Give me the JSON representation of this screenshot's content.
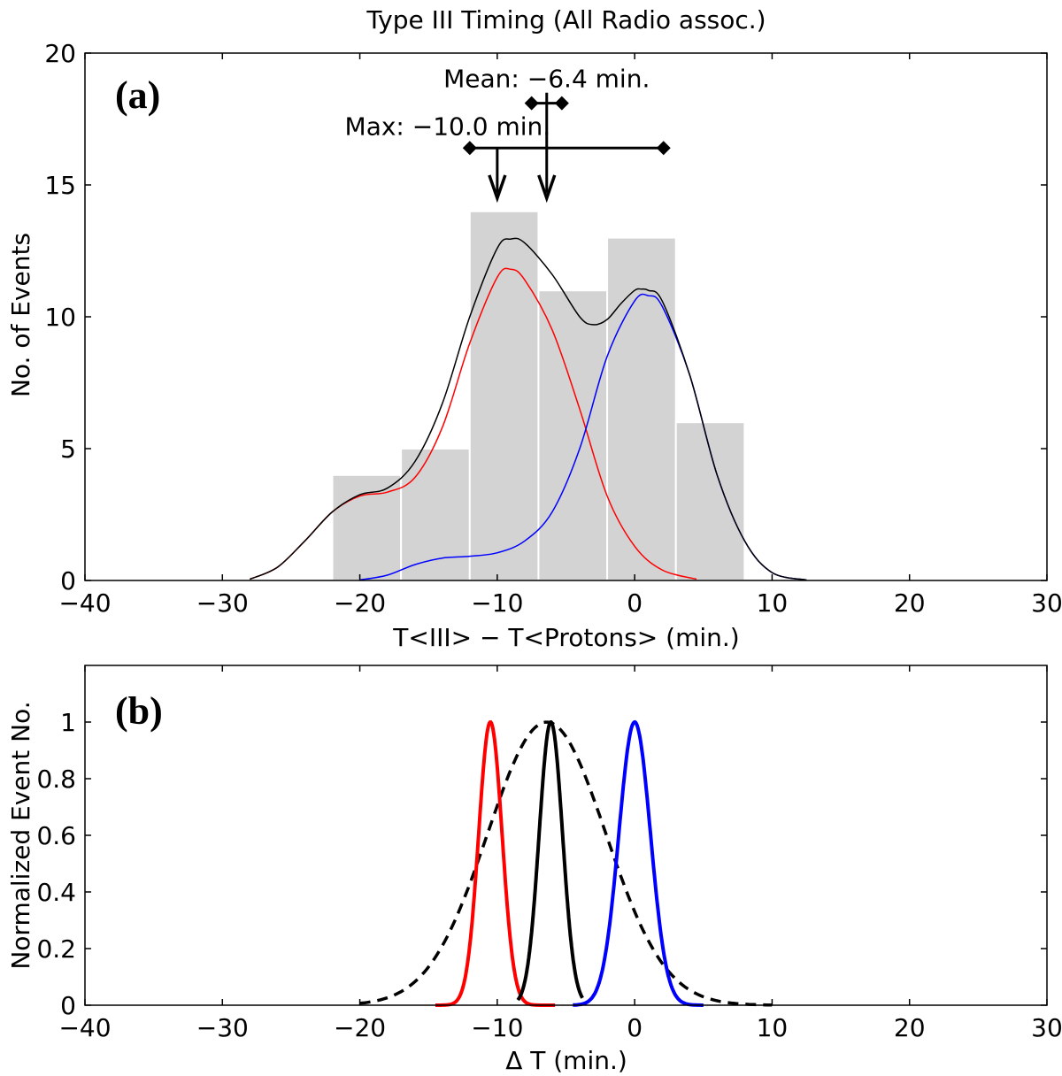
{
  "chart_data": [
    {
      "type": "bar",
      "panel_label": "(a)",
      "title": "Type III Timing (All Radio assoc.)",
      "xlabel": "T<III> − T<Protons> (min.)",
      "ylabel": "No. of Events",
      "xlim": [
        -40,
        30
      ],
      "ylim": [
        0,
        20
      ],
      "x_ticks": [
        -40,
        -30,
        -20,
        -10,
        0,
        10,
        20,
        30
      ],
      "x_tick_labels": [
        "−40",
        "−30",
        "−20",
        "−10",
        "0",
        "10",
        "20",
        "30"
      ],
      "y_ticks": [
        0,
        5,
        10,
        15,
        20
      ],
      "y_tick_labels": [
        "0",
        "5",
        "10",
        "15",
        "20"
      ],
      "grid": false,
      "histogram": {
        "bin_width": 5,
        "bin_centers": [
          -19.5,
          -14.5,
          -9.5,
          -4.5,
          0.5,
          5.5
        ],
        "counts": [
          4,
          5,
          14,
          11,
          13,
          6
        ],
        "color": "#d3d3d3"
      },
      "series": [
        {
          "color": "#ff0000",
          "points": [
            [
              -28,
              0.05
            ],
            [
              -26,
              0.5
            ],
            [
              -24,
              1.5
            ],
            [
              -22,
              2.6
            ],
            [
              -20,
              3.2
            ],
            [
              -18,
              3.35
            ],
            [
              -16,
              3.9
            ],
            [
              -14,
              5.8
            ],
            [
              -12,
              9.0
            ],
            [
              -10,
              11.5
            ],
            [
              -9,
              11.8
            ],
            [
              -8,
              11.4
            ],
            [
              -6,
              9.5
            ],
            [
              -4,
              6.5
            ],
            [
              -2,
              3.2
            ],
            [
              0,
              1.3
            ],
            [
              2,
              0.4
            ],
            [
              4.5,
              0.05
            ]
          ]
        },
        {
          "color": "#0000ff",
          "points": [
            [
              -20,
              0.02
            ],
            [
              -18,
              0.2
            ],
            [
              -16,
              0.6
            ],
            [
              -14,
              0.85
            ],
            [
              -12,
              0.92
            ],
            [
              -10,
              1.05
            ],
            [
              -8,
              1.5
            ],
            [
              -6,
              2.6
            ],
            [
              -4,
              5.0
            ],
            [
              -2,
              8.5
            ],
            [
              0,
              10.6
            ],
            [
              1,
              10.8
            ],
            [
              2,
              10.4
            ],
            [
              4,
              7.8
            ],
            [
              6,
              4.0
            ],
            [
              8,
              1.5
            ],
            [
              10,
              0.3
            ],
            [
              12.5,
              0.02
            ]
          ]
        },
        {
          "color": "#000000",
          "points": [
            [
              -28,
              0.05
            ],
            [
              -26,
              0.5
            ],
            [
              -24,
              1.5
            ],
            [
              -22,
              2.6
            ],
            [
              -20,
              3.25
            ],
            [
              -18,
              3.5
            ],
            [
              -16,
              4.5
            ],
            [
              -14,
              6.7
            ],
            [
              -12,
              10.0
            ],
            [
              -10,
              12.6
            ],
            [
              -9,
              12.95
            ],
            [
              -8,
              12.8
            ],
            [
              -6,
              11.6
            ],
            [
              -4,
              10.0
            ],
            [
              -3,
              9.7
            ],
            [
              -2,
              9.9
            ],
            [
              -1,
              10.5
            ],
            [
              0,
              11.0
            ],
            [
              0.5,
              11.05
            ],
            [
              1,
              11.0
            ],
            [
              2,
              10.6
            ],
            [
              4,
              7.8
            ],
            [
              6,
              4.0
            ],
            [
              8,
              1.5
            ],
            [
              10,
              0.3
            ],
            [
              12.5,
              0.02
            ]
          ]
        }
      ],
      "annotations": [
        {
          "label": "Mean: −6.4 min.",
          "value": -6.4,
          "range": [
            -7.5,
            -5.3
          ],
          "bar_y": 18.1
        },
        {
          "label": "Max: −10.0 min.",
          "value": -10.0,
          "range": [
            -12.0,
            2.1
          ],
          "bar_y": 16.4
        }
      ]
    },
    {
      "type": "line",
      "panel_label": "(b)",
      "xlabel": "Δ T (min.)",
      "ylabel": "Normalized Event No.",
      "xlim": [
        -40,
        30
      ],
      "ylim": [
        0,
        1.2
      ],
      "x_ticks": [
        -40,
        -30,
        -20,
        -10,
        0,
        10,
        20,
        30
      ],
      "x_tick_labels": [
        "−40",
        "−30",
        "−20",
        "−10",
        "0",
        "10",
        "20",
        "30"
      ],
      "y_ticks": [
        0,
        0.2,
        0.4,
        0.6,
        0.8,
        1
      ],
      "y_tick_labels": [
        "0",
        "0.2",
        "0.4",
        "0.6",
        "0.8",
        "1"
      ],
      "grid": false,
      "series": [
        {
          "color": "#000000",
          "style": "dashed",
          "center": -6.4,
          "sigma": 4.3,
          "x_range": [
            -20,
            10
          ]
        },
        {
          "color": "#ff0000",
          "style": "solid",
          "center": -10.5,
          "sigma": 0.85,
          "x_range": [
            -14.5,
            -5.8
          ]
        },
        {
          "color": "#000000",
          "style": "solid",
          "center": -6.1,
          "sigma": 0.85,
          "x_range": [
            -8.5,
            -3.8
          ]
        },
        {
          "color": "#0000ff",
          "style": "solid",
          "center": 0,
          "sigma": 1.15,
          "x_range": [
            -4.5,
            5
          ]
        }
      ]
    }
  ]
}
